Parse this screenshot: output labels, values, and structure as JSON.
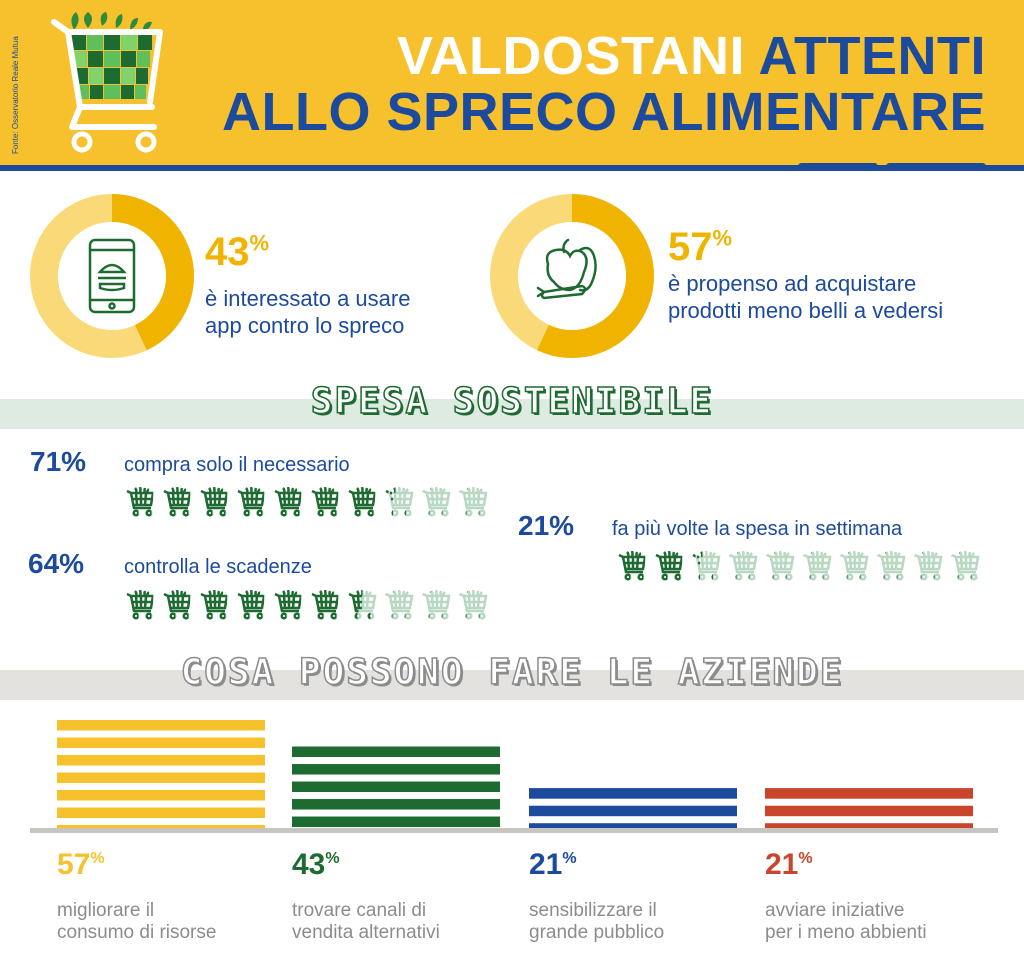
{
  "header": {
    "source": "Fonte: Osservatorio Reale Mutua",
    "title_line1_white": "VALDOSTANI ",
    "title_line1_blue": "ATTENTI",
    "title_line2": "ALLO SPRECO ALIMENTARE"
  },
  "stats": [
    {
      "value": "43",
      "unit": "%",
      "text1": "è interessato a usare",
      "text2": "app contro lo spreco",
      "fraction": 0.43,
      "icon": "smartphone-icon"
    },
    {
      "value": "57",
      "unit": "%",
      "text1": "è propenso ad acquistare",
      "text2": "prodotti meno belli a vedersi",
      "fraction": 0.57,
      "icon": "vegetables-icon"
    }
  ],
  "spesa": {
    "title": "SPESA SOSTENIBILE",
    "items": [
      {
        "pct": "71%",
        "label": "compra solo il necessario",
        "fraction": 0.71
      },
      {
        "pct": "64%",
        "label": "controlla le scadenze",
        "fraction": 0.64
      },
      {
        "pct": "21%",
        "label": "fa più volte la spesa in settimana",
        "fraction": 0.21
      }
    ]
  },
  "aziende": {
    "title": "COSA POSSONO FARE LE AZIENDE"
  },
  "chart_data": {
    "type": "bar",
    "categories": [
      "migliorare il consumo di risorse",
      "trovare canali di vendita alternativi",
      "sensibilizzare il grande pubblico",
      "avviare iniziative per i meno abbienti"
    ],
    "values": [
      57,
      43,
      21,
      21
    ],
    "colors": [
      "#F7C12E",
      "#1E6B32",
      "#1C4A9C",
      "#C9452C"
    ],
    "labels": [
      {
        "value": "57",
        "unit": "%",
        "line1": "migliorare il",
        "line2": "consumo di risorse"
      },
      {
        "value": "43",
        "unit": "%",
        "line1": "trovare canali di",
        "line2": "vendita alternativi"
      },
      {
        "value": "21",
        "unit": "%",
        "line1": "sensibilizzare il",
        "line2": "grande pubblico"
      },
      {
        "value": "21",
        "unit": "%",
        "line1": "avviare iniziative",
        "line2": "per i meno abbienti"
      }
    ]
  },
  "colors": {
    "yellow": "#F7C12E",
    "blue": "#1C4A9C",
    "green": "#1E6B32",
    "red": "#C9452C",
    "mint": "#DDEBE2",
    "beige": "#E4E2DE"
  }
}
